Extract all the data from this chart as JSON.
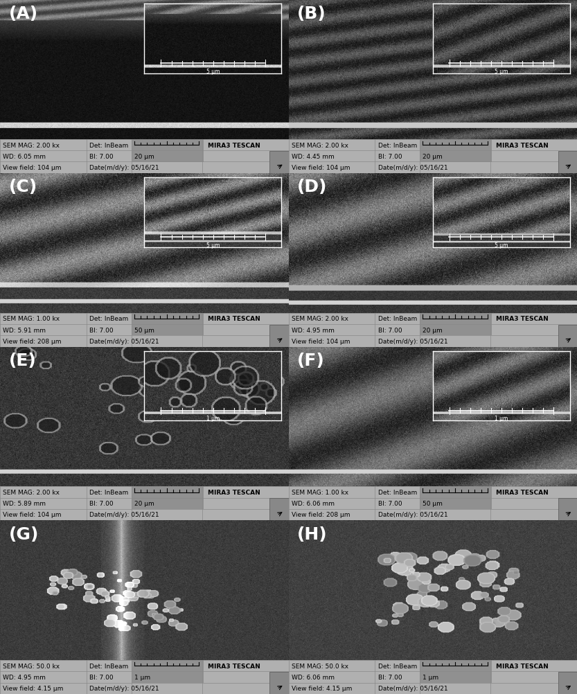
{
  "figure_width": 8.33,
  "figure_height": 10.03,
  "dpi": 100,
  "ncols": 2,
  "nrows": 4,
  "panels": [
    {
      "label": "(A)",
      "sem_mag": "SEM MAG: 2.00 kx",
      "wd": "WD: 6.05 mm",
      "det": "Det: InBeam",
      "bi": "BI: 7.00",
      "scalebar": "20 μm",
      "view_field": "View field: 104 μm",
      "date": "Date(m/d/y): 05/16/21",
      "inset_scale": "5 μm",
      "has_inset": true
    },
    {
      "label": "(B)",
      "sem_mag": "SEM MAG: 2.00 kx",
      "wd": "WD: 4.45 mm",
      "det": "Det: InBeam",
      "bi": "BI: 7.00",
      "scalebar": "20 μm",
      "view_field": "View field: 104 μm",
      "date": "Date(m/d/y): 05/16/21",
      "inset_scale": "5 μm",
      "has_inset": true
    },
    {
      "label": "(C)",
      "sem_mag": "SEM MAG: 1.00 kx",
      "wd": "WD: 5.91 mm",
      "det": "Det: InBeam",
      "bi": "BI: 7.00",
      "scalebar": "50 μm",
      "view_field": "View field: 208 μm",
      "date": "Date(m/d/y): 05/16/21",
      "inset_scale": "5 μm",
      "has_inset": true
    },
    {
      "label": "(D)",
      "sem_mag": "SEM MAG: 2.00 kx",
      "wd": "WD: 4.95 mm",
      "det": "Det: InBeam",
      "bi": "BI: 7.00",
      "scalebar": "20 μm",
      "view_field": "View field: 104 μm",
      "date": "Date(m/d/y): 05/16/21",
      "inset_scale": "5 μm",
      "has_inset": true
    },
    {
      "label": "(E)",
      "sem_mag": "SEM MAG: 2.00 kx",
      "wd": "WD: 5.89 mm",
      "det": "Det: InBeam",
      "bi": "BI: 7.00",
      "scalebar": "20 μm",
      "view_field": "View field: 104 μm",
      "date": "Date(m/d/y): 05/16/21",
      "inset_scale": "1 μm",
      "has_inset": true
    },
    {
      "label": "(F)",
      "sem_mag": "SEM MAG: 1.00 kx",
      "wd": "WD: 6.06 mm",
      "det": "Det: InBeam",
      "bi": "BI: 7.00",
      "scalebar": "50 μm",
      "view_field": "View field: 208 μm",
      "date": "Date(m/d/y): 05/16/21",
      "inset_scale": "1 μm",
      "has_inset": true
    },
    {
      "label": "(G)",
      "sem_mag": "SEM MAG: 50.0 kx",
      "wd": "WD: 4.95 mm",
      "det": "Det: InBeam",
      "bi": "BI: 7.00",
      "scalebar": "1 μm",
      "view_field": "View field: 4.15 μm",
      "date": "Date(m/d/y): 05/16/21",
      "has_inset": false
    },
    {
      "label": "(H)",
      "sem_mag": "SEM MAG: 50.0 kx",
      "wd": "WD: 6.06 mm",
      "det": "Det: InBeam",
      "bi": "BI: 7.00",
      "scalebar": "1 μm",
      "view_field": "View field: 4.15 μm",
      "date": "Date(m/d/y): 05/16/21",
      "has_inset": false
    }
  ],
  "info_bar_color": "#b0b0b0",
  "info_bar_color2": "#909090",
  "label_color": "white",
  "label_fontsize": 18,
  "info_fontsize": 6.5,
  "mira_text": "MIRA3 TESCAN"
}
